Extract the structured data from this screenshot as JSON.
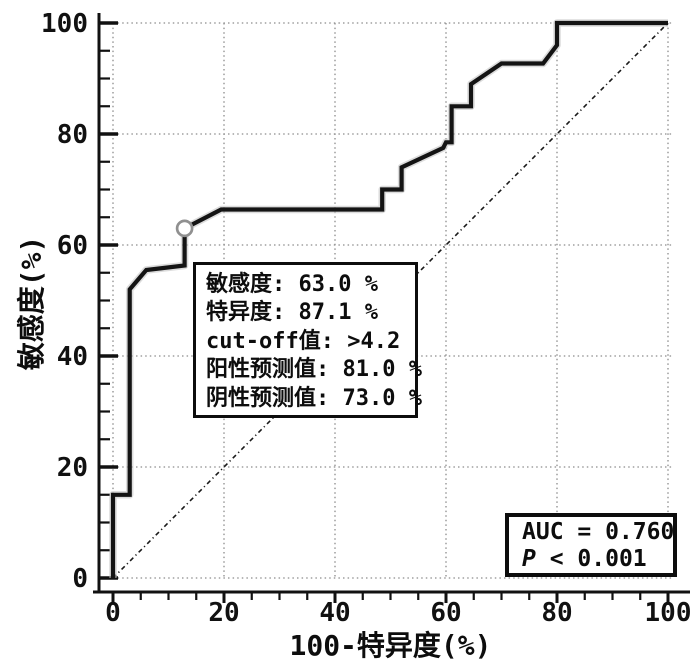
{
  "chart_data": {
    "type": "line",
    "subtype": "ROC curve (staircase) with chance diagonal",
    "xlabel": "100-特异度(%)",
    "ylabel": "敏感度(%)",
    "xlim": [
      0,
      100
    ],
    "ylim": [
      0,
      100
    ],
    "x_ticks": [
      0,
      20,
      40,
      60,
      80,
      100
    ],
    "y_ticks": [
      0,
      20,
      40,
      60,
      80,
      100
    ],
    "minor_tick_step": 5,
    "grid": "dotted lines at major ticks, both axes",
    "legend": "none",
    "series": [
      {
        "name": "ROC curve",
        "style": "solid",
        "points": [
          [
            0,
            0
          ],
          [
            0,
            15
          ],
          [
            3,
            15
          ],
          [
            3,
            52
          ],
          [
            6,
            55.5
          ],
          [
            12.9,
            56.3
          ],
          [
            12.9,
            63
          ],
          [
            19.5,
            66.4
          ],
          [
            48.5,
            66.4
          ],
          [
            48.5,
            70
          ],
          [
            52,
            70
          ],
          [
            52,
            74
          ],
          [
            59.5,
            77.5
          ],
          [
            60,
            78.5
          ],
          [
            61,
            78.5
          ],
          [
            61,
            85
          ],
          [
            64.5,
            85
          ],
          [
            64.5,
            89
          ],
          [
            70,
            92.7
          ],
          [
            77.5,
            92.7
          ],
          [
            80,
            96
          ],
          [
            80,
            100
          ],
          [
            100,
            100
          ]
        ]
      },
      {
        "name": "chance diagonal",
        "style": "dash-dot",
        "points": [
          [
            0,
            0
          ],
          [
            100,
            100
          ]
        ]
      }
    ],
    "marker": {
      "x": 12.9,
      "y": 63,
      "type": "open-circle"
    },
    "colors": {
      "curve": "#141414",
      "curve_halo": "#c4c4c4",
      "diagonal": "#1a1a1a",
      "grid": "#8c8c8c",
      "axis": "#111111",
      "marker_stroke": "#909090",
      "marker_fill": "#ffffff",
      "text": "#0d0d0d",
      "background": "#ffffff"
    }
  },
  "annotation_box": {
    "lines": [
      "敏感度: 63.0 %",
      "特异度: 87.1 %",
      "cut-off值: >4.2",
      "阳性预测值: 81.0 %",
      "阴性预测值: 73.0 %"
    ]
  },
  "auc_box": {
    "line1": "AUC = 0.760",
    "p_label": "P",
    "p_rest": " < 0.001"
  }
}
